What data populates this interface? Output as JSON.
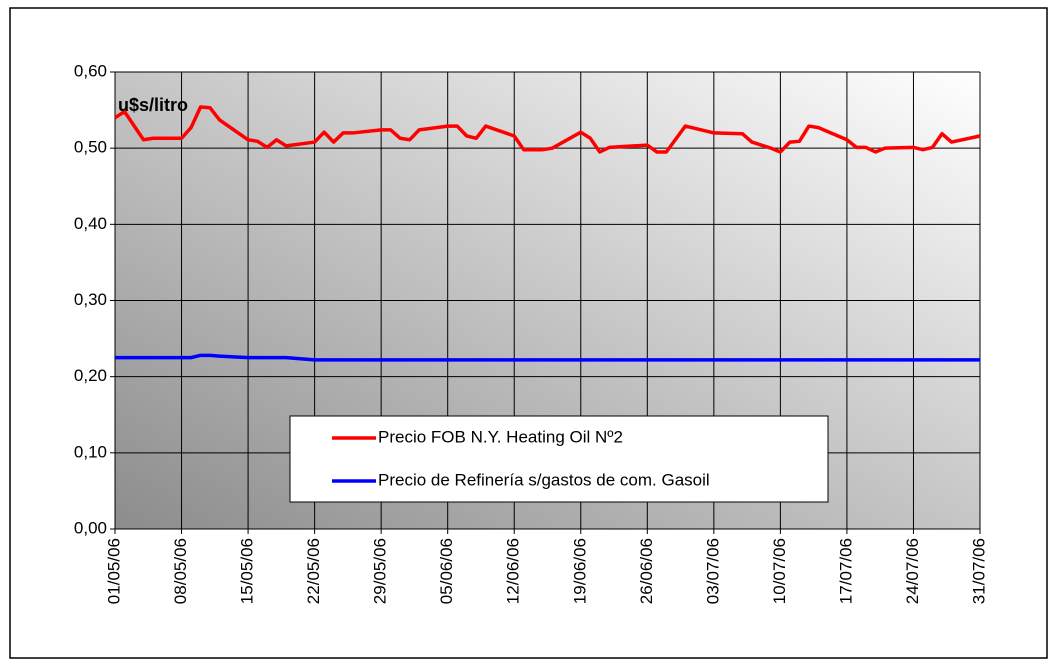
{
  "chart_data": {
    "type": "line",
    "annotation": "u$s/litro",
    "x": [
      "01/05/06",
      "02/05/06",
      "04/05/06",
      "05/05/06",
      "08/05/06",
      "09/05/06",
      "10/05/06",
      "11/05/06",
      "12/05/06",
      "15/05/06",
      "16/05/06",
      "17/05/06",
      "18/05/06",
      "19/05/06",
      "22/05/06",
      "23/05/06",
      "24/05/06",
      "25/05/06",
      "26/05/06",
      "29/05/06",
      "30/05/06",
      "31/05/06",
      "01/06/06",
      "02/06/06",
      "05/06/06",
      "06/06/06",
      "07/06/06",
      "08/06/06",
      "09/06/06",
      "12/06/06",
      "13/06/06",
      "15/06/06",
      "16/06/06",
      "19/06/06",
      "20/06/06",
      "21/06/06",
      "22/06/06",
      "26/06/06",
      "27/06/06",
      "28/06/06",
      "30/06/06",
      "03/07/06",
      "06/07/06",
      "07/07/06",
      "09/07/06",
      "10/07/06",
      "11/07/06",
      "12/07/06",
      "13/07/06",
      "14/07/06",
      "17/07/06",
      "18/07/06",
      "19/07/06",
      "20/07/06",
      "21/07/06",
      "24/07/06",
      "25/07/06",
      "26/07/06",
      "27/07/06",
      "28/07/06",
      "31/07/06"
    ],
    "series": [
      {
        "name": "Precio FOB N.Y. Heating Oil Nº2",
        "color": "#ff0000",
        "values": [
          0.54,
          0.548,
          0.511,
          0.513,
          0.513,
          0.527,
          0.554,
          0.553,
          0.537,
          0.511,
          0.509,
          0.501,
          0.511,
          0.503,
          0.508,
          0.521,
          0.508,
          0.52,
          0.52,
          0.524,
          0.524,
          0.513,
          0.511,
          0.524,
          0.529,
          0.529,
          0.516,
          0.513,
          0.529,
          0.516,
          0.498,
          0.498,
          0.5,
          0.521,
          0.513,
          0.495,
          0.501,
          0.504,
          0.495,
          0.495,
          0.529,
          0.52,
          0.519,
          0.508,
          0.5,
          0.495,
          0.508,
          0.509,
          0.529,
          0.527,
          0.511,
          0.501,
          0.501,
          0.495,
          0.5,
          0.501,
          0.498,
          0.501,
          0.519,
          0.508,
          0.516
        ]
      },
      {
        "name": "Precio de Refinería s/gastos de com. Gasoil",
        "color": "#0000ff",
        "values": [
          0.225,
          0.225,
          0.225,
          0.225,
          0.225,
          0.225,
          0.228,
          0.228,
          0.227,
          0.225,
          0.225,
          0.225,
          0.225,
          0.225,
          0.222,
          0.222,
          0.222,
          0.222,
          0.222,
          0.222,
          0.222,
          0.222,
          0.222,
          0.222,
          0.222,
          0.222,
          0.222,
          0.222,
          0.222,
          0.222,
          0.222,
          0.222,
          0.222,
          0.222,
          0.222,
          0.222,
          0.222,
          0.222,
          0.222,
          0.222,
          0.222,
          0.222,
          0.222,
          0.222,
          0.222,
          0.222,
          0.222,
          0.222,
          0.222,
          0.222,
          0.222,
          0.222,
          0.222,
          0.222,
          0.222,
          0.222,
          0.222,
          0.222,
          0.222,
          0.222,
          0.222
        ]
      }
    ],
    "xlim": [
      "01/05/06",
      "31/07/06"
    ],
    "xticks": [
      "01/05/06",
      "08/05/06",
      "15/05/06",
      "22/05/06",
      "29/05/06",
      "05/06/06",
      "12/06/06",
      "19/06/06",
      "26/06/06",
      "03/07/06",
      "10/07/06",
      "17/07/06",
      "24/07/06",
      "31/07/06"
    ],
    "ylim": [
      0,
      0.6
    ],
    "yticks": [
      {
        "value": 0,
        "label": "0,00"
      },
      {
        "value": 0.1,
        "label": "0,10"
      },
      {
        "value": 0.2,
        "label": "0,20"
      },
      {
        "value": 0.3,
        "label": "0,30"
      },
      {
        "value": 0.4,
        "label": "0,40"
      },
      {
        "value": 0.5,
        "label": "0,50"
      },
      {
        "value": 0.6,
        "label": "0,60"
      }
    ],
    "grid": true
  }
}
